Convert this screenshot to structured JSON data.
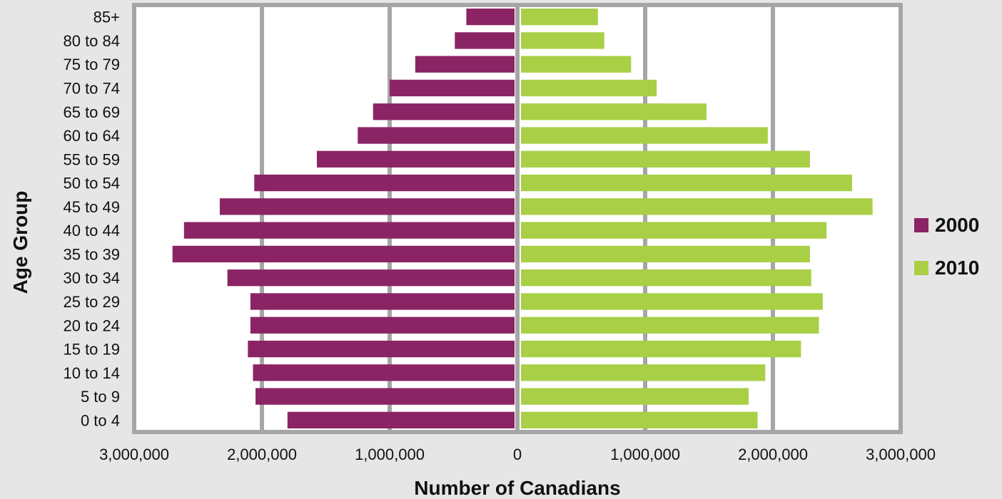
{
  "chart_data": {
    "type": "bar",
    "orientation": "horizontal",
    "layout": "population-pyramid",
    "categories": [
      "0 to 4",
      "5 to 9",
      "10 to 14",
      "15 to 19",
      "20 to 24",
      "25 to 29",
      "30 to 34",
      "35 to 39",
      "40 to 44",
      "45 to 49",
      "50 to 54",
      "55 to 59",
      "60 to 64",
      "65 to 69",
      "70 to 74",
      "75 to 79",
      "80 to 84",
      "85+"
    ],
    "series": [
      {
        "name": "2000",
        "side": "left",
        "color": "#8b2464",
        "values": [
          1800000,
          2050000,
          2070000,
          2110000,
          2090000,
          2090000,
          2270000,
          2700000,
          2610000,
          2330000,
          2060000,
          1570000,
          1250000,
          1130000,
          1000000,
          800000,
          490000,
          400000
        ]
      },
      {
        "name": "2010",
        "side": "right",
        "color": "#a8cf45",
        "values": [
          1880000,
          1810000,
          1940000,
          2220000,
          2360000,
          2390000,
          2300000,
          2290000,
          2420000,
          2780000,
          2620000,
          2290000,
          1960000,
          1480000,
          1090000,
          890000,
          680000,
          630000
        ]
      }
    ],
    "xlabel": "Number of Canadians",
    "ylabel": "Age Group",
    "xlim": [
      -3000000,
      3000000
    ],
    "xticks": [
      -3000000,
      -2000000,
      -1000000,
      0,
      1000000,
      2000000,
      3000000
    ],
    "xtick_labels": [
      "3,000,000",
      "2,000,000",
      "1,000,000",
      "0",
      "1,000,000",
      "2,000,000",
      "3,000,000"
    ],
    "grid": true,
    "legend_position": "right"
  },
  "colors": {
    "background": "#e6e6e6",
    "plot_background": "#ffffff",
    "grid": "#a6a6a6"
  }
}
